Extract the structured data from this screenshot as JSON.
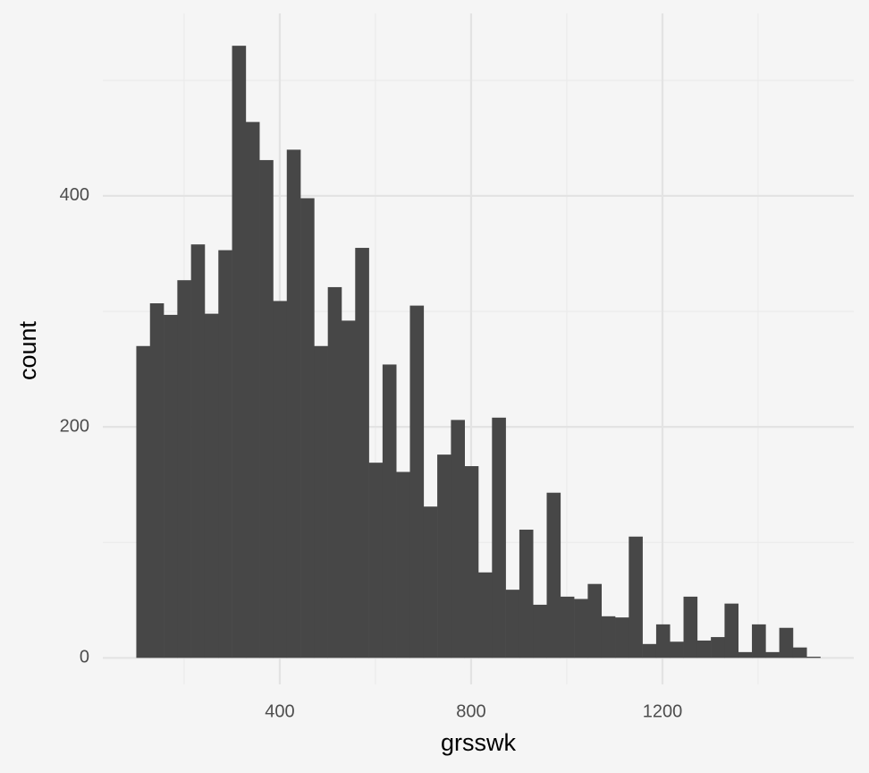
{
  "chart_data": {
    "type": "histogram",
    "x_label": "grsswk",
    "y_label": "count",
    "color": "#474747",
    "bins": [
      100,
      128.6,
      157.2,
      185.8,
      214.4,
      243,
      271.6,
      300.2,
      328.8,
      357.4,
      386,
      414.6,
      443.2,
      471.8,
      500.4,
      529,
      557.6,
      586.2,
      614.8,
      643.4,
      672,
      700.6,
      729.2,
      757.8,
      786.4,
      815,
      843.6,
      872.2,
      900.8,
      929.4,
      958,
      986.6,
      1015.2,
      1043.8,
      1072.4,
      1101,
      1129.6,
      1158.2,
      1186.8,
      1215.4,
      1244,
      1272.6,
      1301.2,
      1329.8,
      1358.4,
      1387,
      1415.6,
      1444.2,
      1472.8,
      1501.4,
      1530
    ],
    "values": [
      270,
      307,
      297,
      327,
      358,
      298,
      353,
      530,
      464,
      431,
      309,
      440,
      398,
      270,
      321,
      292,
      355,
      169,
      254,
      161,
      305,
      131,
      176,
      206,
      166,
      74,
      208,
      59,
      111,
      46,
      143,
      53,
      51,
      64,
      36,
      35,
      105,
      12,
      29,
      14,
      53,
      15,
      18,
      47,
      5,
      29,
      5,
      26,
      9,
      1
    ],
    "xlim": [
      30,
      1600
    ],
    "ylim": [
      -23,
      558
    ],
    "xticks": [
      400,
      800,
      1200
    ],
    "yticks": [
      0,
      200,
      400
    ],
    "x_minor_ticks": [
      200,
      600,
      1000,
      1400
    ],
    "y_minor_ticks": [
      100,
      300,
      500
    ],
    "grid": true
  }
}
